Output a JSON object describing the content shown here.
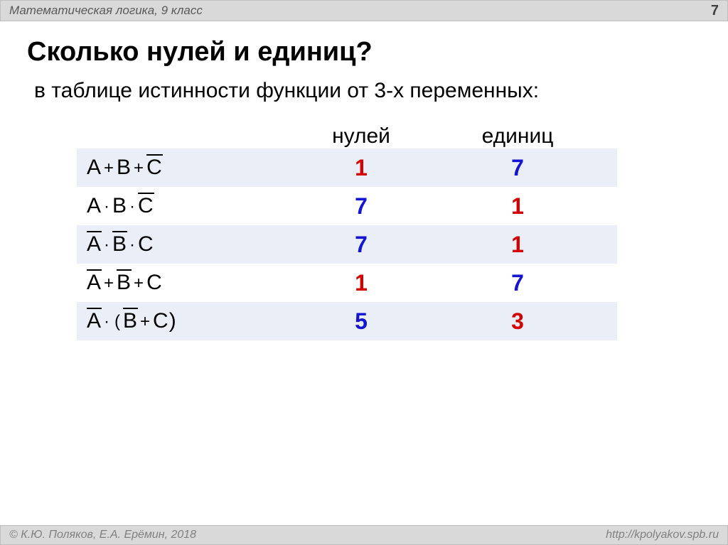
{
  "header": {
    "left": "Математическая логика, 9 класс",
    "slide_number": "7"
  },
  "title": "Сколько нулей и единиц?",
  "subtitle": "в таблице истинности функции от 3-х переменных:",
  "columns": {
    "zeros": "нулей",
    "ones": "единиц"
  },
  "colors": {
    "red": "#d40000",
    "blue": "#1414d2",
    "row_shade": "#eaeff7",
    "bar_bg": "#d9d9d9",
    "bar_border": "#bfbfbf"
  },
  "rows": [
    {
      "formula": [
        [
          "A",
          false
        ],
        [
          "+",
          null
        ],
        [
          "B",
          false
        ],
        [
          "+",
          null
        ],
        [
          "C",
          true
        ]
      ],
      "zeros": "1",
      "zeros_color": "red",
      "ones": "7",
      "ones_color": "blue",
      "shaded": true
    },
    {
      "formula": [
        [
          "A",
          false
        ],
        [
          "·",
          null
        ],
        [
          "B",
          false
        ],
        [
          "·",
          null
        ],
        [
          "C",
          true
        ]
      ],
      "zeros": "7",
      "zeros_color": "blue",
      "ones": "1",
      "ones_color": "red",
      "shaded": false
    },
    {
      "formula": [
        [
          "A",
          true
        ],
        [
          "·",
          null
        ],
        [
          "B",
          true
        ],
        [
          "·",
          null
        ],
        [
          "C",
          false
        ]
      ],
      "zeros": "7",
      "zeros_color": "blue",
      "ones": "1",
      "ones_color": "red",
      "shaded": true
    },
    {
      "formula": [
        [
          "A",
          true
        ],
        [
          "+",
          null
        ],
        [
          "B",
          true
        ],
        [
          "+",
          null
        ],
        [
          "C",
          false
        ]
      ],
      "zeros": "1",
      "zeros_color": "red",
      "ones": "7",
      "ones_color": "blue",
      "shaded": false
    },
    {
      "formula": [
        [
          "A",
          true
        ],
        [
          "·",
          null
        ],
        [
          "(",
          null
        ],
        [
          "B",
          true
        ],
        [
          "+",
          null
        ],
        [
          "C)",
          false
        ]
      ],
      "zeros": "5",
      "zeros_color": "blue",
      "ones": "3",
      "ones_color": "red",
      "shaded": true
    }
  ],
  "footer": {
    "left": "© К.Ю. Поляков, Е.А. Ерёмин, 2018",
    "right": "http://kpolyakov.spb.ru"
  }
}
